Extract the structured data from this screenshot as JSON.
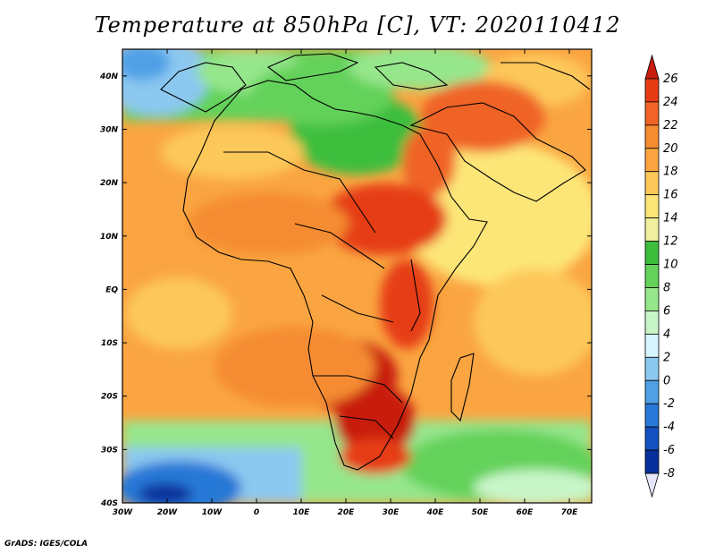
{
  "title": "Temperature at 850hPa [C], VT: 2020110412",
  "footer": "GrADS: IGES/COLA",
  "map": {
    "lat_range": [
      -40,
      45
    ],
    "lon_range": [
      -30,
      75
    ],
    "lat_labels": [
      "40N",
      "30N",
      "20N",
      "10N",
      "EQ",
      "10S",
      "20S",
      "30S",
      "40S"
    ],
    "lat_values": [
      40,
      30,
      20,
      10,
      0,
      -10,
      -20,
      -30,
      -40
    ],
    "lon_labels": [
      "30W",
      "20W",
      "10W",
      "0",
      "10E",
      "20E",
      "30E",
      "40E",
      "50E",
      "60E",
      "70E"
    ],
    "lon_values": [
      -30,
      -20,
      -10,
      0,
      10,
      20,
      30,
      40,
      50,
      60,
      70
    ]
  },
  "colorbar": {
    "labels": [
      "26",
      "24",
      "22",
      "20",
      "18",
      "16",
      "14",
      "12",
      "10",
      "8",
      "6",
      "4",
      "2",
      "0",
      "-2",
      "-4",
      "-6",
      "-8"
    ],
    "colors": [
      "#c81e10",
      "#e63c14",
      "#f06428",
      "#f58c32",
      "#faa541",
      "#fdc85a",
      "#fde678",
      "#f0f0a0",
      "#3cbe3c",
      "#64d25a",
      "#96e68c",
      "#c8f5c8",
      "#d7f5ff",
      "#8cc8f0",
      "#50a0e6",
      "#2878d7",
      "#1450be",
      "#08309c",
      "#0a1e78"
    ]
  }
}
